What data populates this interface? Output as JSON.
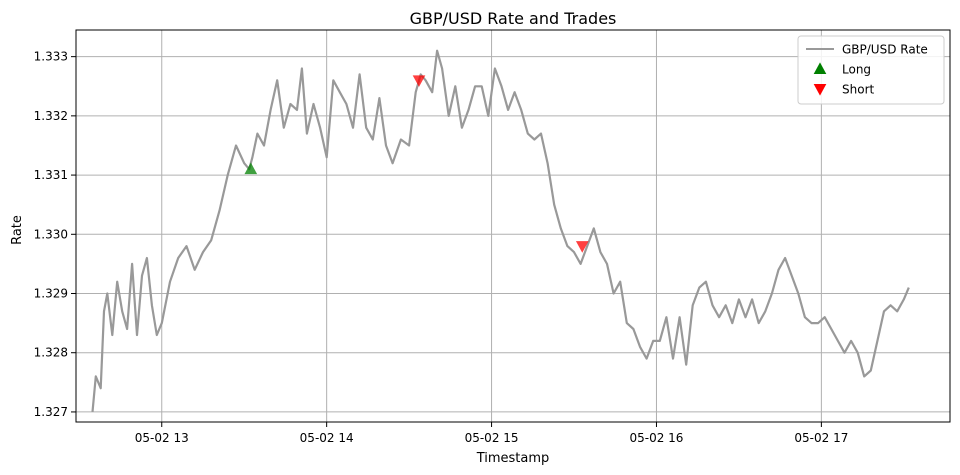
{
  "chart_data": {
    "type": "line",
    "title": "GBP/USD Rate and Trades",
    "xlabel": "Timestamp",
    "ylabel": "Rate",
    "xlim": [
      12.48,
      17.78
    ],
    "ylim": [
      1.32683,
      1.33345
    ],
    "x_ticks": [
      {
        "value": 13,
        "label": "05-02 13"
      },
      {
        "value": 14,
        "label": "05-02 14"
      },
      {
        "value": 15,
        "label": "05-02 15"
      },
      {
        "value": 16,
        "label": "05-02 16"
      },
      {
        "value": 17,
        "label": "05-02 17"
      }
    ],
    "y_ticks": [
      1.327,
      1.328,
      1.329,
      1.33,
      1.331,
      1.332,
      1.333
    ],
    "grid": true,
    "legend": {
      "position": "top-right",
      "entries": [
        {
          "label": "GBP/USD Rate",
          "marker": "line",
          "color": "#999999"
        },
        {
          "label": "Long",
          "marker": "triangle-up",
          "color": "#008000"
        },
        {
          "label": "Short",
          "marker": "triangle-down",
          "color": "#ff0000"
        }
      ]
    },
    "series": [
      {
        "name": "GBP/USD Rate",
        "color": "#999999",
        "x": [
          12.58,
          12.6,
          12.63,
          12.65,
          12.67,
          12.7,
          12.73,
          12.76,
          12.79,
          12.82,
          12.85,
          12.88,
          12.91,
          12.94,
          12.97,
          13.0,
          13.05,
          13.1,
          13.15,
          13.2,
          13.25,
          13.3,
          13.35,
          13.4,
          13.45,
          13.5,
          13.53,
          13.55,
          13.58,
          13.62,
          13.66,
          13.7,
          13.74,
          13.78,
          13.82,
          13.85,
          13.88,
          13.92,
          13.96,
          14.0,
          14.04,
          14.08,
          14.12,
          14.16,
          14.2,
          14.24,
          14.28,
          14.32,
          14.36,
          14.4,
          14.45,
          14.5,
          14.54,
          14.57,
          14.6,
          14.64,
          14.67,
          14.7,
          14.74,
          14.78,
          14.82,
          14.86,
          14.9,
          14.94,
          14.98,
          15.02,
          15.06,
          15.1,
          15.14,
          15.18,
          15.22,
          15.26,
          15.3,
          15.34,
          15.38,
          15.42,
          15.46,
          15.5,
          15.54,
          15.58,
          15.62,
          15.66,
          15.7,
          15.74,
          15.78,
          15.82,
          15.86,
          15.9,
          15.94,
          15.98,
          16.02,
          16.06,
          16.1,
          16.14,
          16.18,
          16.22,
          16.26,
          16.3,
          16.34,
          16.38,
          16.42,
          16.46,
          16.5,
          16.54,
          16.58,
          16.62,
          16.66,
          16.7,
          16.74,
          16.78,
          16.82,
          16.86,
          16.9,
          16.94,
          16.98,
          17.02,
          17.06,
          17.1,
          17.14,
          17.18,
          17.22,
          17.26,
          17.3,
          17.34,
          17.38,
          17.42,
          17.46,
          17.5,
          17.53
        ],
        "values": [
          1.327,
          1.3276,
          1.3274,
          1.3287,
          1.329,
          1.3283,
          1.3292,
          1.3287,
          1.3284,
          1.3295,
          1.3283,
          1.3293,
          1.3296,
          1.3288,
          1.3283,
          1.3285,
          1.3292,
          1.3296,
          1.3298,
          1.3294,
          1.3297,
          1.3299,
          1.3304,
          1.331,
          1.3315,
          1.3312,
          1.3311,
          1.3313,
          1.3317,
          1.3315,
          1.3321,
          1.3326,
          1.3318,
          1.3322,
          1.3321,
          1.3328,
          1.3317,
          1.3322,
          1.3318,
          1.3313,
          1.3326,
          1.3324,
          1.3322,
          1.3318,
          1.3327,
          1.3318,
          1.3316,
          1.3323,
          1.3315,
          1.3312,
          1.3316,
          1.3315,
          1.3324,
          1.3327,
          1.3326,
          1.3324,
          1.3331,
          1.3328,
          1.332,
          1.3325,
          1.3318,
          1.3321,
          1.3325,
          1.3325,
          1.332,
          1.3328,
          1.3325,
          1.3321,
          1.3324,
          1.3321,
          1.3317,
          1.3316,
          1.3317,
          1.3312,
          1.3305,
          1.3301,
          1.3298,
          1.3297,
          1.3295,
          1.3298,
          1.3301,
          1.3297,
          1.3295,
          1.329,
          1.3292,
          1.3285,
          1.3284,
          1.3281,
          1.3279,
          1.3282,
          1.3282,
          1.3286,
          1.3279,
          1.3286,
          1.3278,
          1.3288,
          1.3291,
          1.3292,
          1.3288,
          1.3286,
          1.3288,
          1.3285,
          1.3289,
          1.3286,
          1.3289,
          1.3285,
          1.3287,
          1.329,
          1.3294,
          1.3296,
          1.3293,
          1.329,
          1.3286,
          1.3285,
          1.3285,
          1.3286,
          1.3284,
          1.3282,
          1.328,
          1.3282,
          1.328,
          1.3276,
          1.3277,
          1.3282,
          1.3287,
          1.3288,
          1.3287,
          1.3289,
          1.3291
        ]
      },
      {
        "name": "Long",
        "marker": "triangle-up",
        "color": "#008000",
        "x": [
          13.54
        ],
        "values": [
          1.3311
        ]
      },
      {
        "name": "Short",
        "marker": "triangle-down",
        "color": "#ff0000",
        "x": [
          14.56,
          15.55
        ],
        "values": [
          1.3326,
          1.3298
        ]
      }
    ]
  }
}
